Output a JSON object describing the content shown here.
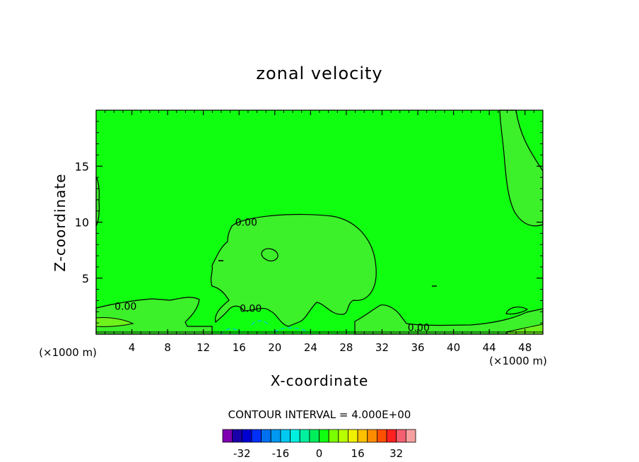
{
  "chart_data": {
    "type": "heatmap",
    "title": "zonal velocity",
    "xlabel": "X-coordinate",
    "ylabel": "Z-coordinate",
    "x_unit_left": "(×1000 m)",
    "x_unit_right": "(×1000 m)",
    "xlim": [
      0,
      50
    ],
    "ylim": [
      0,
      20
    ],
    "x_ticks": [
      4,
      8,
      12,
      16,
      20,
      24,
      28,
      32,
      36,
      40,
      44,
      48
    ],
    "y_ticks": [
      5,
      10,
      15
    ],
    "contour_labels": [
      {
        "text": "0.00",
        "x": 16.8,
        "z": 10.0
      },
      {
        "text": "0.00",
        "x": 3.3,
        "z": 2.5
      },
      {
        "text": "0.00",
        "x": 17.3,
        "z": 2.3
      },
      {
        "text": "0.00",
        "x": 36.1,
        "z": 0.6
      }
    ],
    "background_value_range": [
      0,
      4
    ],
    "regions": [
      {
        "name": "central positive blob",
        "value_range": [
          0,
          4
        ],
        "x_range": [
          13,
          31
        ],
        "z_range": [
          0.3,
          10.6
        ]
      },
      {
        "name": "upper-right positive lobe",
        "value_range": [
          0,
          4
        ],
        "x_range": [
          45,
          50
        ],
        "z_range": [
          9.8,
          20
        ]
      },
      {
        "name": "near-surface layer left",
        "value_range": [
          0,
          4
        ],
        "x_range": [
          0,
          10.5
        ],
        "z_range": [
          0,
          3.3
        ]
      },
      {
        "name": "near-surface layer right",
        "value_range": [
          0,
          4
        ],
        "x_range": [
          30,
          50
        ],
        "z_range": [
          0,
          2.3
        ]
      },
      {
        "name": "negative pocket",
        "value_range": [
          -4,
          0
        ],
        "x_range": [
          14,
          24
        ],
        "z_range": [
          0,
          1.1
        ]
      }
    ],
    "contour_interval_text": "CONTOUR INTERVAL = 4.000E+00",
    "colorbar": {
      "levels": [
        -36,
        -32,
        -28,
        -24,
        -20,
        -16,
        -12,
        -8,
        -4,
        0,
        4,
        8,
        12,
        16,
        20,
        24,
        28,
        32,
        36
      ],
      "tick_labels": [
        "-32",
        "-16",
        "0",
        "16",
        "32"
      ],
      "colors": [
        "#7f00b2",
        "#1a00a8",
        "#0000d0",
        "#0030f8",
        "#0070f0",
        "#0098f0",
        "#00c8f0",
        "#00f0e0",
        "#00f09e",
        "#00ee5c",
        "#10ff10",
        "#7aff00",
        "#b8ff00",
        "#f0f000",
        "#ffc000",
        "#ff8c00",
        "#ff5000",
        "#ff2020",
        "#f46070",
        "#f8a0a0"
      ]
    }
  }
}
